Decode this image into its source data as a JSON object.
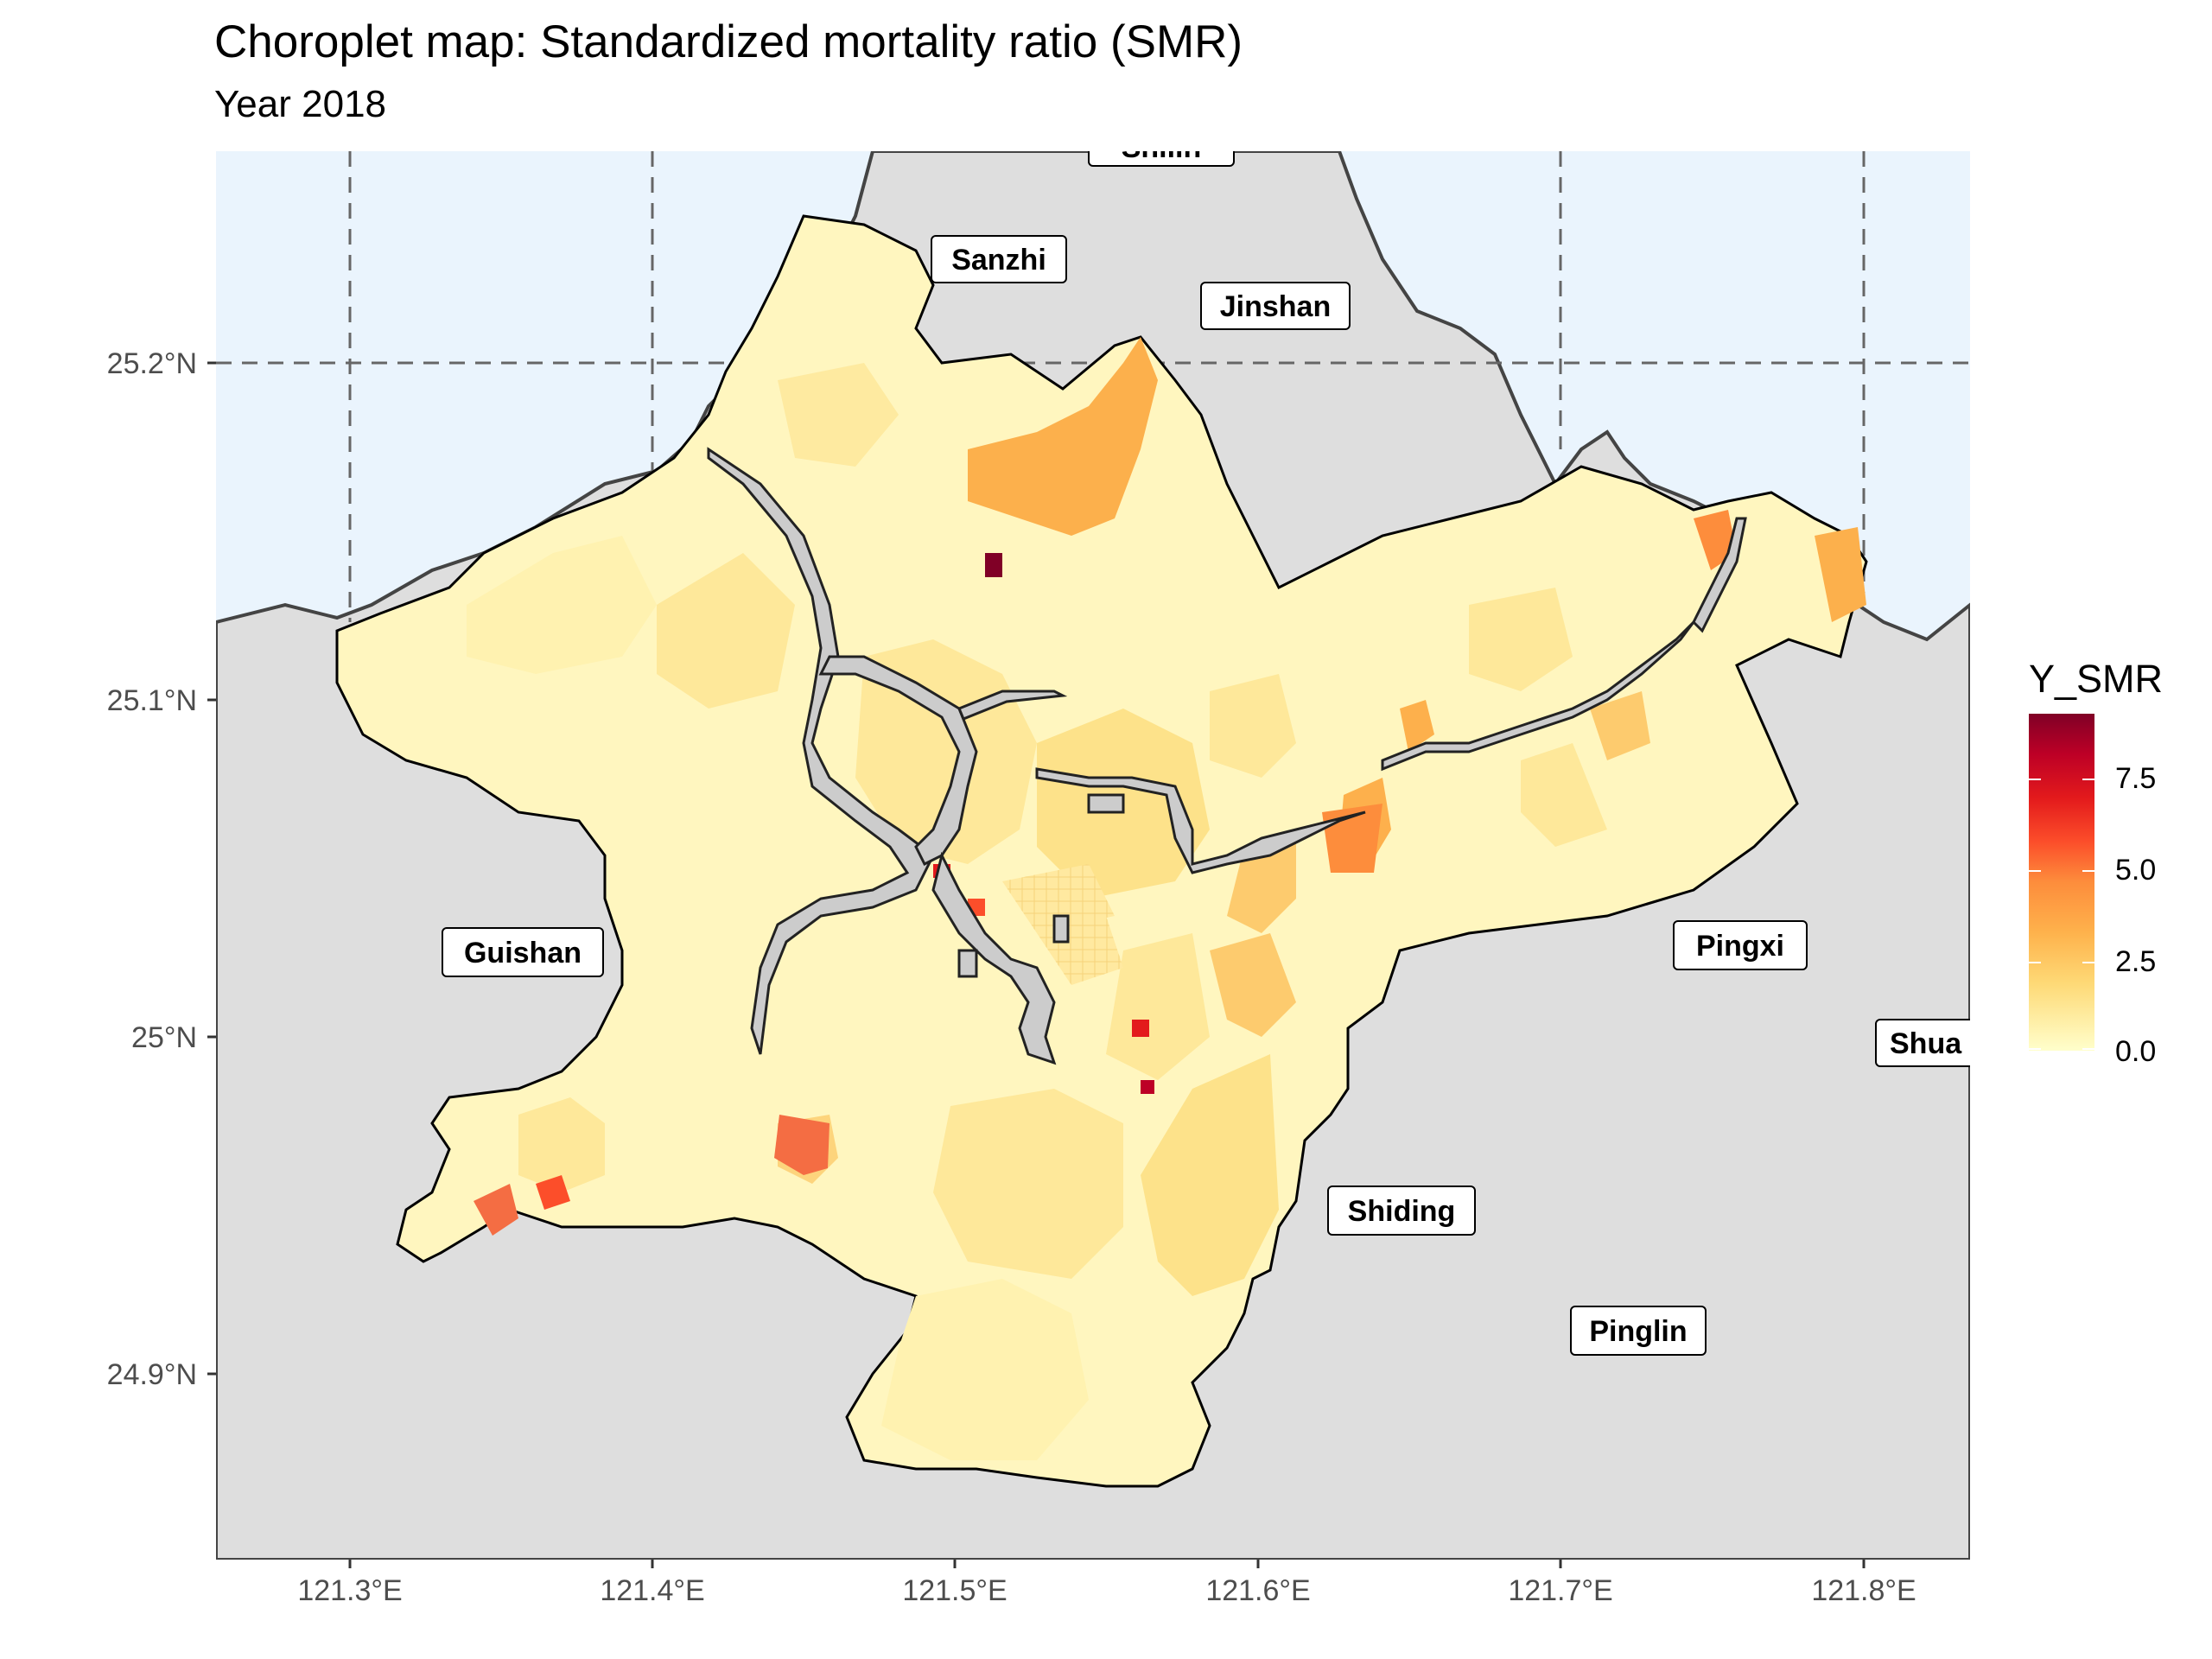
{
  "title": "Choroplet map: Standardized mortality ratio (SMR)",
  "subtitle": "Year 2018",
  "axes": {
    "x_ticks": [
      "121.3°E",
      "121.4°E",
      "121.5°E",
      "121.6°E",
      "121.7°E",
      "121.8°E"
    ],
    "y_ticks": [
      "25.2°N",
      "25.1°N",
      "25°N",
      "24.9°N"
    ]
  },
  "places": [
    "Shilin",
    "Sanzhi",
    "Jinshan",
    "Guishan",
    "Pingxi",
    "Shua",
    "Shiding",
    "Pinglin"
  ],
  "legend": {
    "title": "Y_SMR",
    "labels": [
      "7.5",
      "5.0",
      "2.5",
      "0.0"
    ]
  },
  "colors": {
    "sea": "#eaf4fd",
    "land": "#dedede",
    "river": "#cccccc",
    "scale_low": "#ffffcc",
    "scale_high": "#800026"
  }
}
